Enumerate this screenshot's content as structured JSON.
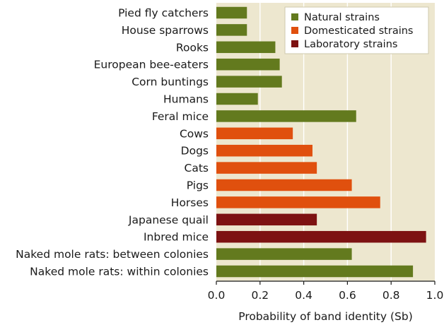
{
  "chart_data": {
    "type": "bar",
    "orientation": "horizontal",
    "title": "",
    "xlabel": "Probability of band identity (Sb)",
    "ylabel": "",
    "xlim": [
      0,
      1.0
    ],
    "xticks": [
      "0.0",
      "0.2",
      "0.4",
      "0.6",
      "0.8",
      "1.0"
    ],
    "xtick_values": [
      0,
      0.2,
      0.4,
      0.6,
      0.8,
      1.0
    ],
    "grid": "vertical",
    "background_color": "#ede7cf",
    "grid_color": "#ffffff",
    "legend_position": "top-right",
    "legend": [
      {
        "name": "Natural strains",
        "color": "#637a1e"
      },
      {
        "name": "Domesticated strains",
        "color": "#e0500e"
      },
      {
        "name": "Laboratory strains",
        "color": "#7d1212"
      }
    ],
    "bars": [
      {
        "label": "Pied fly catchers",
        "value": 0.14,
        "group": "Natural strains",
        "color": "#637a1e"
      },
      {
        "label": "House sparrows",
        "value": 0.14,
        "group": "Natural strains",
        "color": "#637a1e"
      },
      {
        "label": "Rooks",
        "value": 0.27,
        "group": "Natural strains",
        "color": "#637a1e"
      },
      {
        "label": "European bee-eaters",
        "value": 0.29,
        "group": "Natural strains",
        "color": "#637a1e"
      },
      {
        "label": "Corn buntings",
        "value": 0.3,
        "group": "Natural strains",
        "color": "#637a1e"
      },
      {
        "label": "Humans",
        "value": 0.19,
        "group": "Natural strains",
        "color": "#637a1e"
      },
      {
        "label": "Feral mice",
        "value": 0.64,
        "group": "Natural strains",
        "color": "#637a1e"
      },
      {
        "label": "Cows",
        "value": 0.35,
        "group": "Domesticated strains",
        "color": "#e0500e"
      },
      {
        "label": "Dogs",
        "value": 0.44,
        "group": "Domesticated strains",
        "color": "#e0500e"
      },
      {
        "label": "Cats",
        "value": 0.46,
        "group": "Domesticated strains",
        "color": "#e0500e"
      },
      {
        "label": "Pigs",
        "value": 0.62,
        "group": "Domesticated strains",
        "color": "#e0500e"
      },
      {
        "label": "Horses",
        "value": 0.75,
        "group": "Domesticated strains",
        "color": "#e0500e"
      },
      {
        "label": "Japanese quail",
        "value": 0.46,
        "group": "Laboratory strains",
        "color": "#7d1212"
      },
      {
        "label": "Inbred mice",
        "value": 0.96,
        "group": "Laboratory strains",
        "color": "#7d1212"
      },
      {
        "label": "Naked mole rats: between colonies",
        "value": 0.62,
        "group": "Natural strains",
        "color": "#637a1e"
      },
      {
        "label": "Naked mole rats: within colonies",
        "value": 0.9,
        "group": "Natural strains",
        "color": "#637a1e"
      }
    ]
  }
}
